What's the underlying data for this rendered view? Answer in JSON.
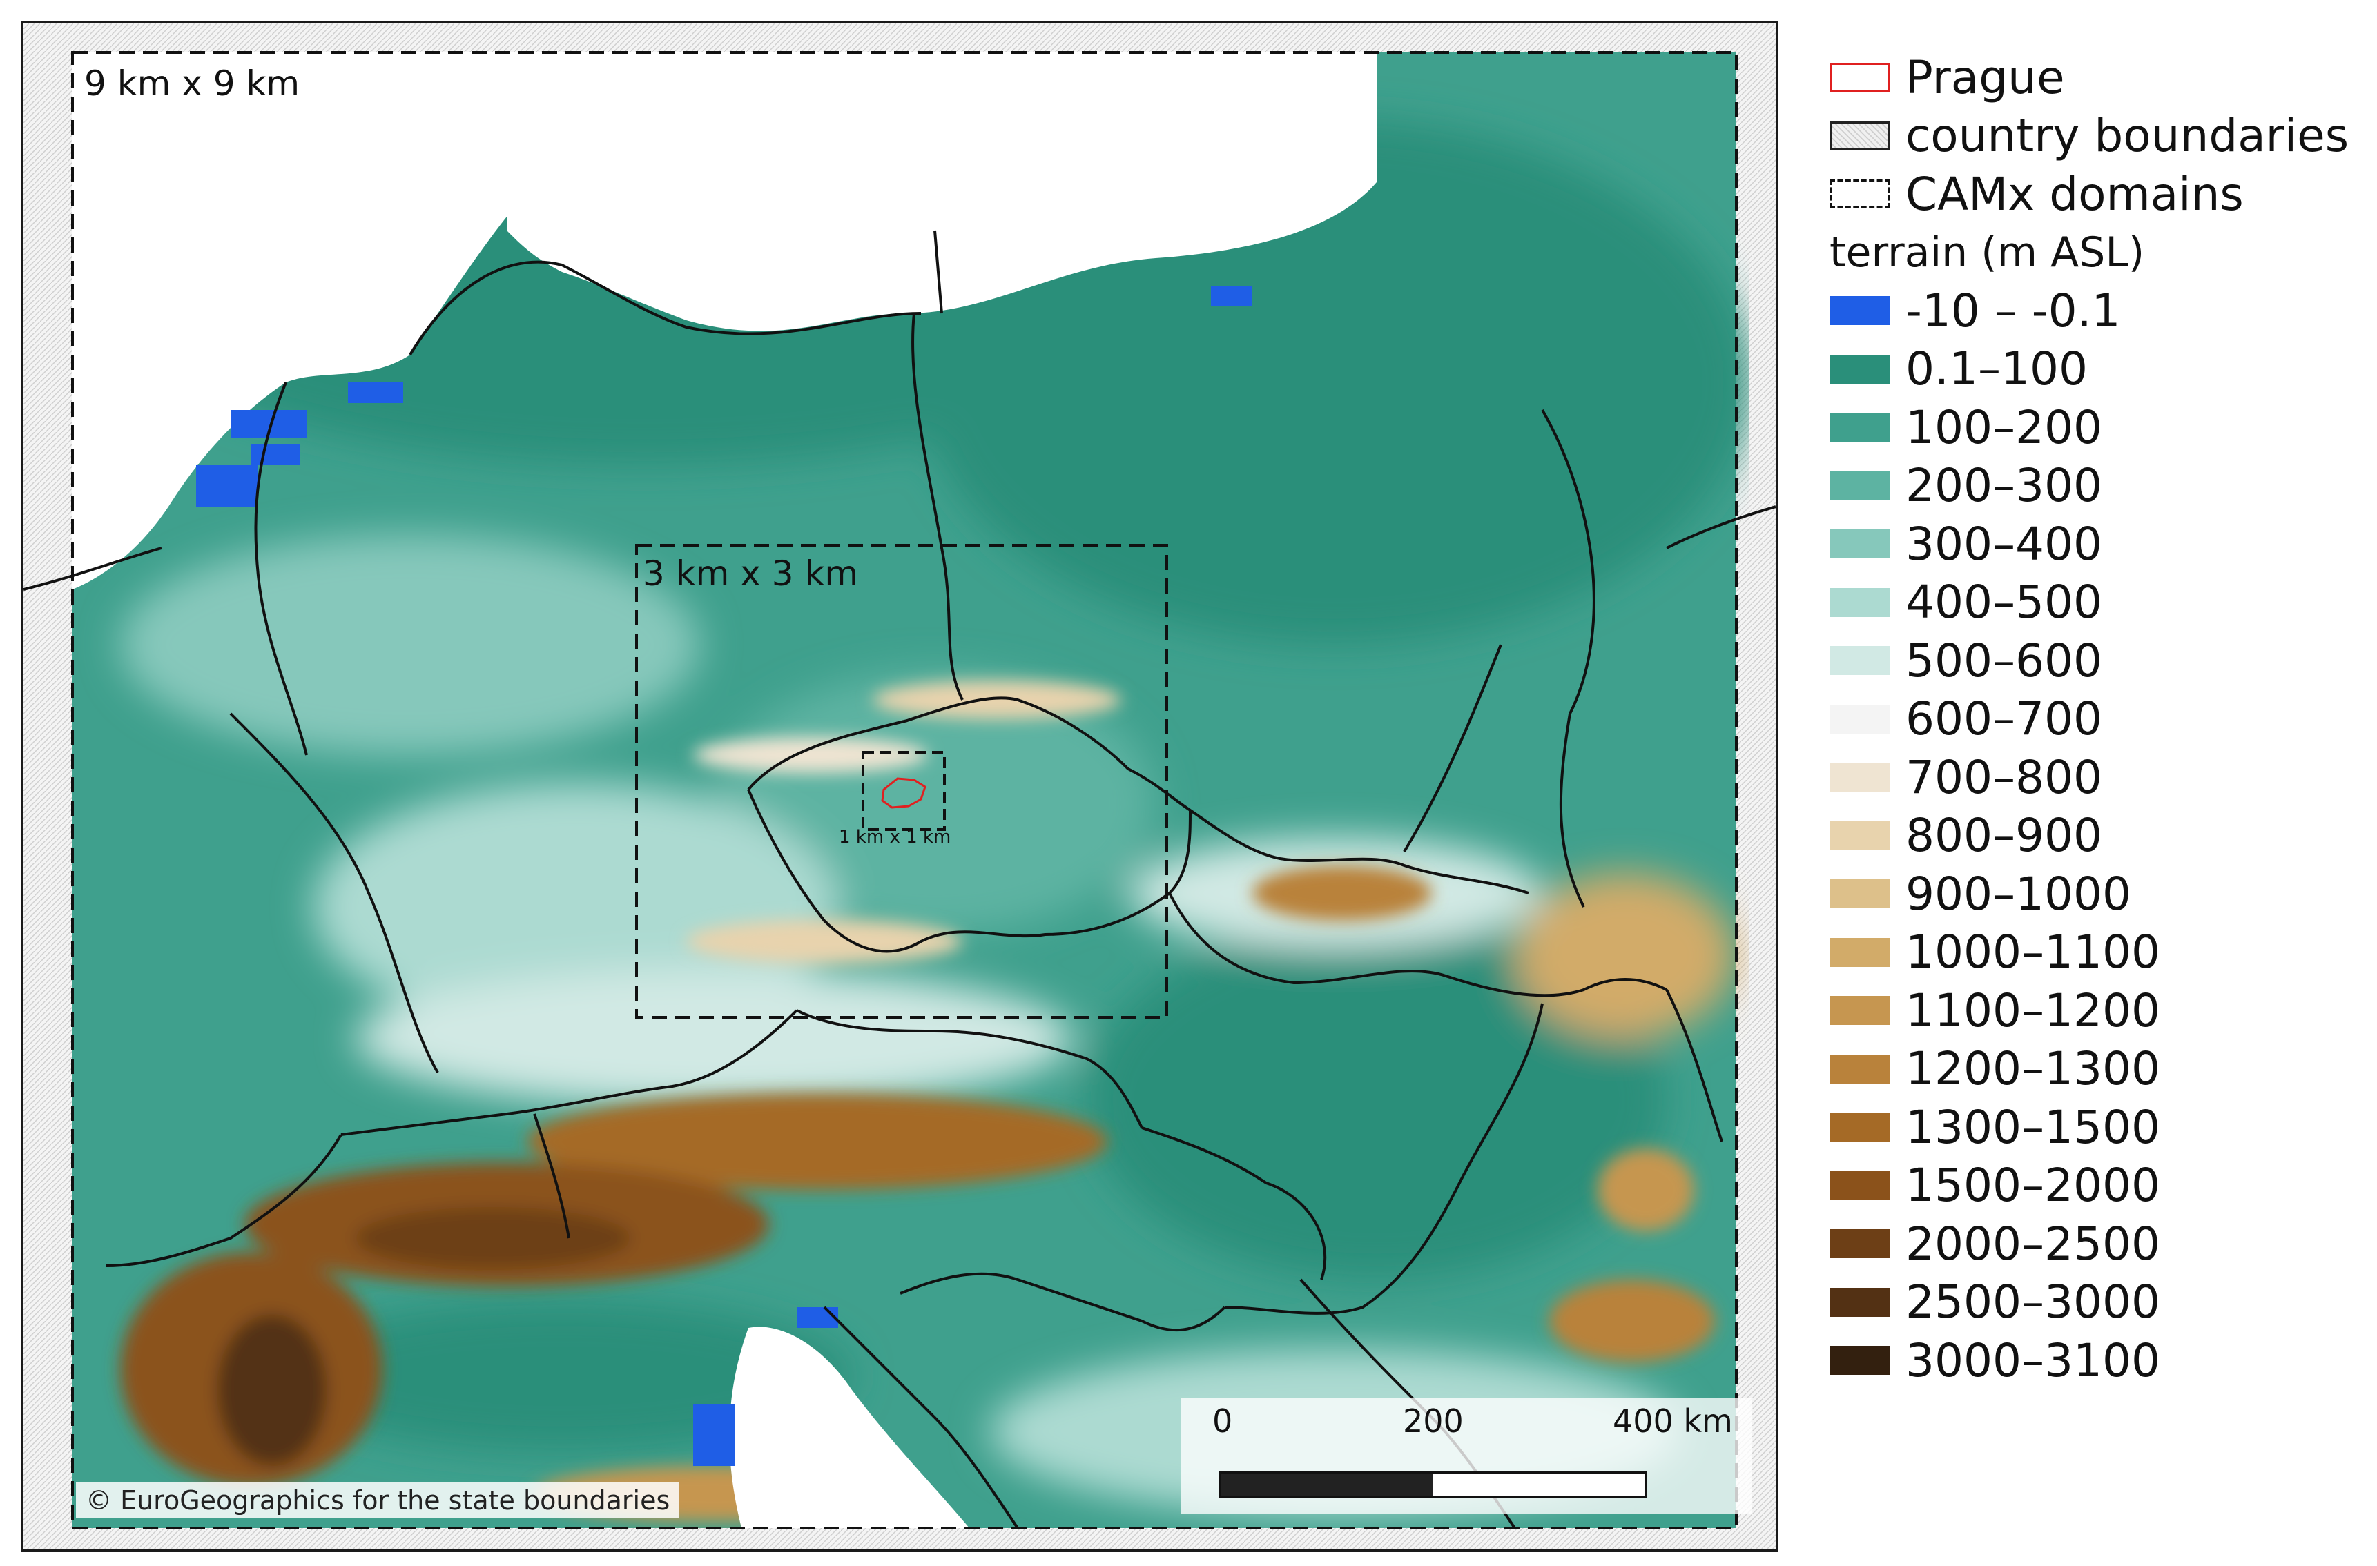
{
  "map": {
    "domain_9_label": "9 km x 9 km",
    "domain_3_label": "3 km x 3 km",
    "domain_1_label": "1 km x 1 km",
    "attribution": "© EuroGeographics for the state boundaries",
    "scale": {
      "ticks": [
        "0",
        "200",
        "400 km"
      ]
    }
  },
  "legend": {
    "symbols": [
      {
        "label": "Prague",
        "style": "red-outline"
      },
      {
        "label": "country boundaries",
        "style": "gray-hatched"
      },
      {
        "label": "CAMx domains",
        "style": "dashed-outline"
      }
    ],
    "terrain_title": "terrain (m ASL)",
    "terrain_classes": [
      {
        "label": "-10 – -0.1",
        "color": "#1f5ee6"
      },
      {
        "label": "0.1–100",
        "color": "#2a8f7a"
      },
      {
        "label": "100–200",
        "color": "#3fa08d"
      },
      {
        "label": "200–300",
        "color": "#5db3a2"
      },
      {
        "label": "300–400",
        "color": "#86c8bb"
      },
      {
        "label": "400–500",
        "color": "#acdad1"
      },
      {
        "label": "500–600",
        "color": "#d1e9e4"
      },
      {
        "label": "600–700",
        "color": "#f4f4f4"
      },
      {
        "label": "700–800",
        "color": "#efe4d2"
      },
      {
        "label": "800–900",
        "color": "#e8d3ad"
      },
      {
        "label": "900–1000",
        "color": "#ddc08a"
      },
      {
        "label": "1000–1100",
        "color": "#d2ab69"
      },
      {
        "label": "1100–1200",
        "color": "#c69650"
      },
      {
        "label": "1200–1300",
        "color": "#b9823b"
      },
      {
        "label": "1300–1500",
        "color": "#a56a26"
      },
      {
        "label": "1500–2000",
        "color": "#8b521b"
      },
      {
        "label": "2000–2500",
        "color": "#6d3f16"
      },
      {
        "label": "2500–3000",
        "color": "#533114"
      },
      {
        "label": "3000–3100",
        "color": "#33200f"
      }
    ]
  }
}
